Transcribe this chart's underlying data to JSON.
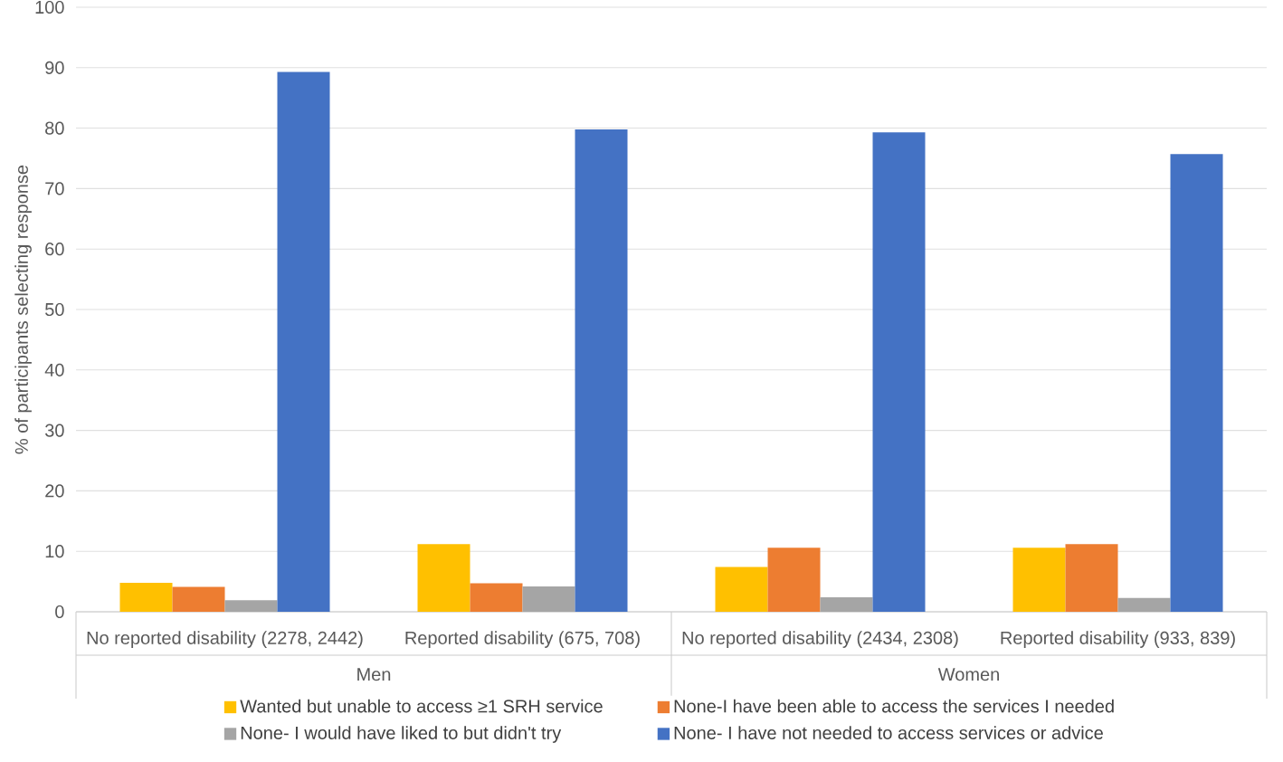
{
  "chart_data": {
    "type": "bar",
    "ylabel": "% of participants selecting response",
    "categories": [
      "No reported disability (2278, 2442)",
      "Reported disability (675, 708)",
      "No reported disability (2434, 2308)",
      "Reported disability (933, 839)"
    ],
    "annotations": [
      "Men",
      "Women"
    ],
    "series": [
      {
        "name": "Wanted but unable to access ≥1 SRH service",
        "color": "#ffc000",
        "values": [
          4.8,
          11.2,
          7.4,
          10.6
        ]
      },
      {
        "name": "None-I have been able to access the services I needed",
        "color": "#ed7d31",
        "values": [
          4.1,
          4.7,
          10.6,
          11.2
        ]
      },
      {
        "name": "None- I would have liked to but didn't try",
        "color": "#a5a5a5",
        "values": [
          1.9,
          4.2,
          2.4,
          2.3
        ]
      },
      {
        "name": "None- I have not needed to access services or advice",
        "color": "#4472c4",
        "values": [
          89.3,
          79.8,
          79.3,
          75.7
        ]
      }
    ],
    "ylim": [
      0,
      100
    ],
    "yticks": [
      0,
      10,
      20,
      30,
      40,
      50,
      60,
      70,
      80,
      90,
      100
    ],
    "grid": "y",
    "legend": "bottom"
  }
}
